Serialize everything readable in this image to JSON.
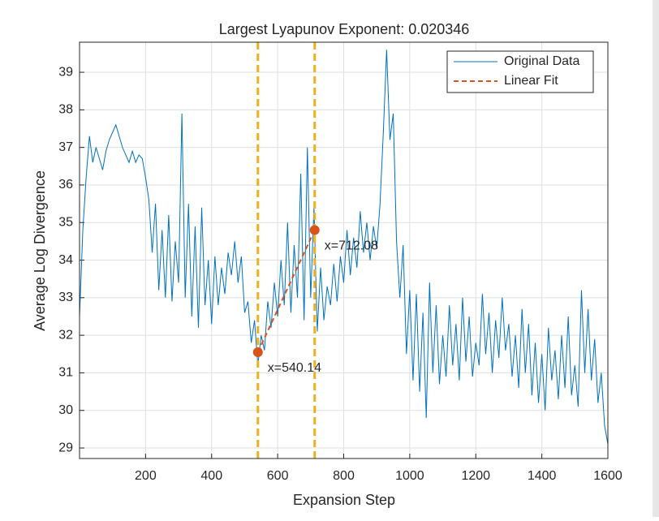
{
  "chart_data": {
    "type": "line",
    "title": "Largest Lyapunov Exponent: 0.020346",
    "xlabel": "Expansion Step",
    "ylabel": "Average Log Divergence",
    "xlim": [
      0,
      1600
    ],
    "xticks": [
      200,
      400,
      600,
      800,
      1000,
      1200,
      1400,
      1600
    ],
    "ylim": [
      28.72,
      39.8
    ],
    "yticks": [
      29,
      30,
      31,
      32,
      33,
      34,
      35,
      36,
      37,
      38,
      39
    ],
    "grid": true,
    "legend": "upper right",
    "series": [
      {
        "name": "Original Data",
        "color": "#0072bd",
        "style": "solid",
        "x": [
          0,
          10,
          20,
          30,
          40,
          50,
          60,
          70,
          80,
          90,
          100,
          110,
          120,
          130,
          140,
          150,
          160,
          170,
          180,
          190,
          200,
          210,
          220,
          230,
          240,
          250,
          260,
          270,
          280,
          290,
          300,
          310,
          320,
          330,
          340,
          350,
          360,
          370,
          380,
          390,
          400,
          410,
          420,
          430,
          440,
          450,
          460,
          470,
          480,
          490,
          500,
          510,
          520,
          530,
          540,
          550,
          560,
          570,
          580,
          590,
          600,
          610,
          620,
          630,
          640,
          650,
          660,
          670,
          680,
          690,
          700,
          710,
          720,
          730,
          740,
          750,
          760,
          770,
          780,
          790,
          800,
          810,
          820,
          830,
          840,
          850,
          860,
          870,
          880,
          890,
          900,
          910,
          920,
          930,
          940,
          950,
          960,
          970,
          980,
          990,
          1000,
          1010,
          1020,
          1030,
          1040,
          1050,
          1060,
          1070,
          1080,
          1090,
          1100,
          1110,
          1120,
          1130,
          1140,
          1150,
          1160,
          1170,
          1180,
          1190,
          1200,
          1210,
          1220,
          1230,
          1240,
          1250,
          1260,
          1270,
          1280,
          1290,
          1300,
          1310,
          1320,
          1330,
          1340,
          1350,
          1360,
          1370,
          1380,
          1390,
          1400,
          1410,
          1420,
          1430,
          1440,
          1450,
          1460,
          1470,
          1480,
          1490,
          1500,
          1510,
          1520,
          1530,
          1540,
          1550,
          1560,
          1570,
          1580,
          1590,
          1600
        ],
        "values": [
          32.5,
          34.8,
          36.2,
          37.3,
          36.6,
          37.0,
          36.7,
          36.4,
          36.9,
          37.2,
          37.4,
          37.6,
          37.3,
          37.0,
          36.8,
          36.6,
          36.9,
          36.6,
          36.8,
          36.7,
          36.2,
          35.6,
          34.2,
          35.5,
          33.2,
          34.8,
          33.0,
          35.2,
          32.9,
          34.5,
          33.4,
          37.9,
          33.0,
          35.5,
          32.5,
          34.9,
          32.2,
          35.4,
          32.8,
          34.0,
          32.3,
          34.1,
          32.8,
          33.8,
          33.1,
          34.2,
          33.6,
          34.5,
          33.4,
          34.1,
          32.6,
          32.9,
          31.8,
          32.4,
          31.2,
          32.0,
          31.6,
          32.9,
          32.2,
          33.4,
          32.5,
          34.0,
          32.8,
          35.0,
          32.6,
          34.4,
          33.0,
          36.3,
          32.4,
          37.0,
          33.0,
          35.4,
          32.1,
          33.8,
          32.4,
          33.3,
          32.8,
          33.9,
          32.9,
          34.1,
          33.4,
          34.8,
          33.6,
          34.6,
          33.8,
          35.3,
          34.2,
          35.0,
          34.0,
          34.9,
          34.3,
          35.5,
          37.4,
          39.6,
          37.2,
          37.9,
          34.5,
          33.0,
          34.4,
          31.5,
          33.2,
          30.8,
          33.1,
          30.5,
          32.6,
          29.8,
          33.4,
          31.0,
          32.8,
          30.7,
          32.0,
          30.9,
          32.8,
          31.2,
          32.3,
          30.8,
          33.0,
          31.3,
          32.5,
          30.9,
          31.8,
          31.2,
          33.1,
          31.5,
          32.6,
          31.0,
          32.4,
          31.4,
          33.0,
          31.6,
          32.3,
          30.9,
          32.0,
          30.6,
          32.7,
          31.0,
          32.3,
          30.4,
          31.8,
          30.2,
          31.5,
          30.0,
          32.2,
          30.8,
          31.6,
          30.3,
          32.0,
          30.6,
          32.5,
          30.4,
          31.2,
          30.1,
          33.2,
          31.0,
          32.7,
          30.8,
          31.9,
          30.2,
          31.0,
          29.6,
          29.1
        ]
      },
      {
        "name": "Linear Fit",
        "color": "#d95319",
        "style": "dashed",
        "x": [
          540.14,
          712.08
        ],
        "values": [
          31.55,
          34.8
        ]
      }
    ],
    "vlines": {
      "color": "#edb120",
      "x": [
        540.14,
        712.08
      ]
    },
    "annotations": [
      {
        "label": "x=540.14",
        "x": 540.14,
        "y": 31.55
      },
      {
        "label": "x=712.08",
        "x": 712.08,
        "y": 34.8
      }
    ]
  }
}
